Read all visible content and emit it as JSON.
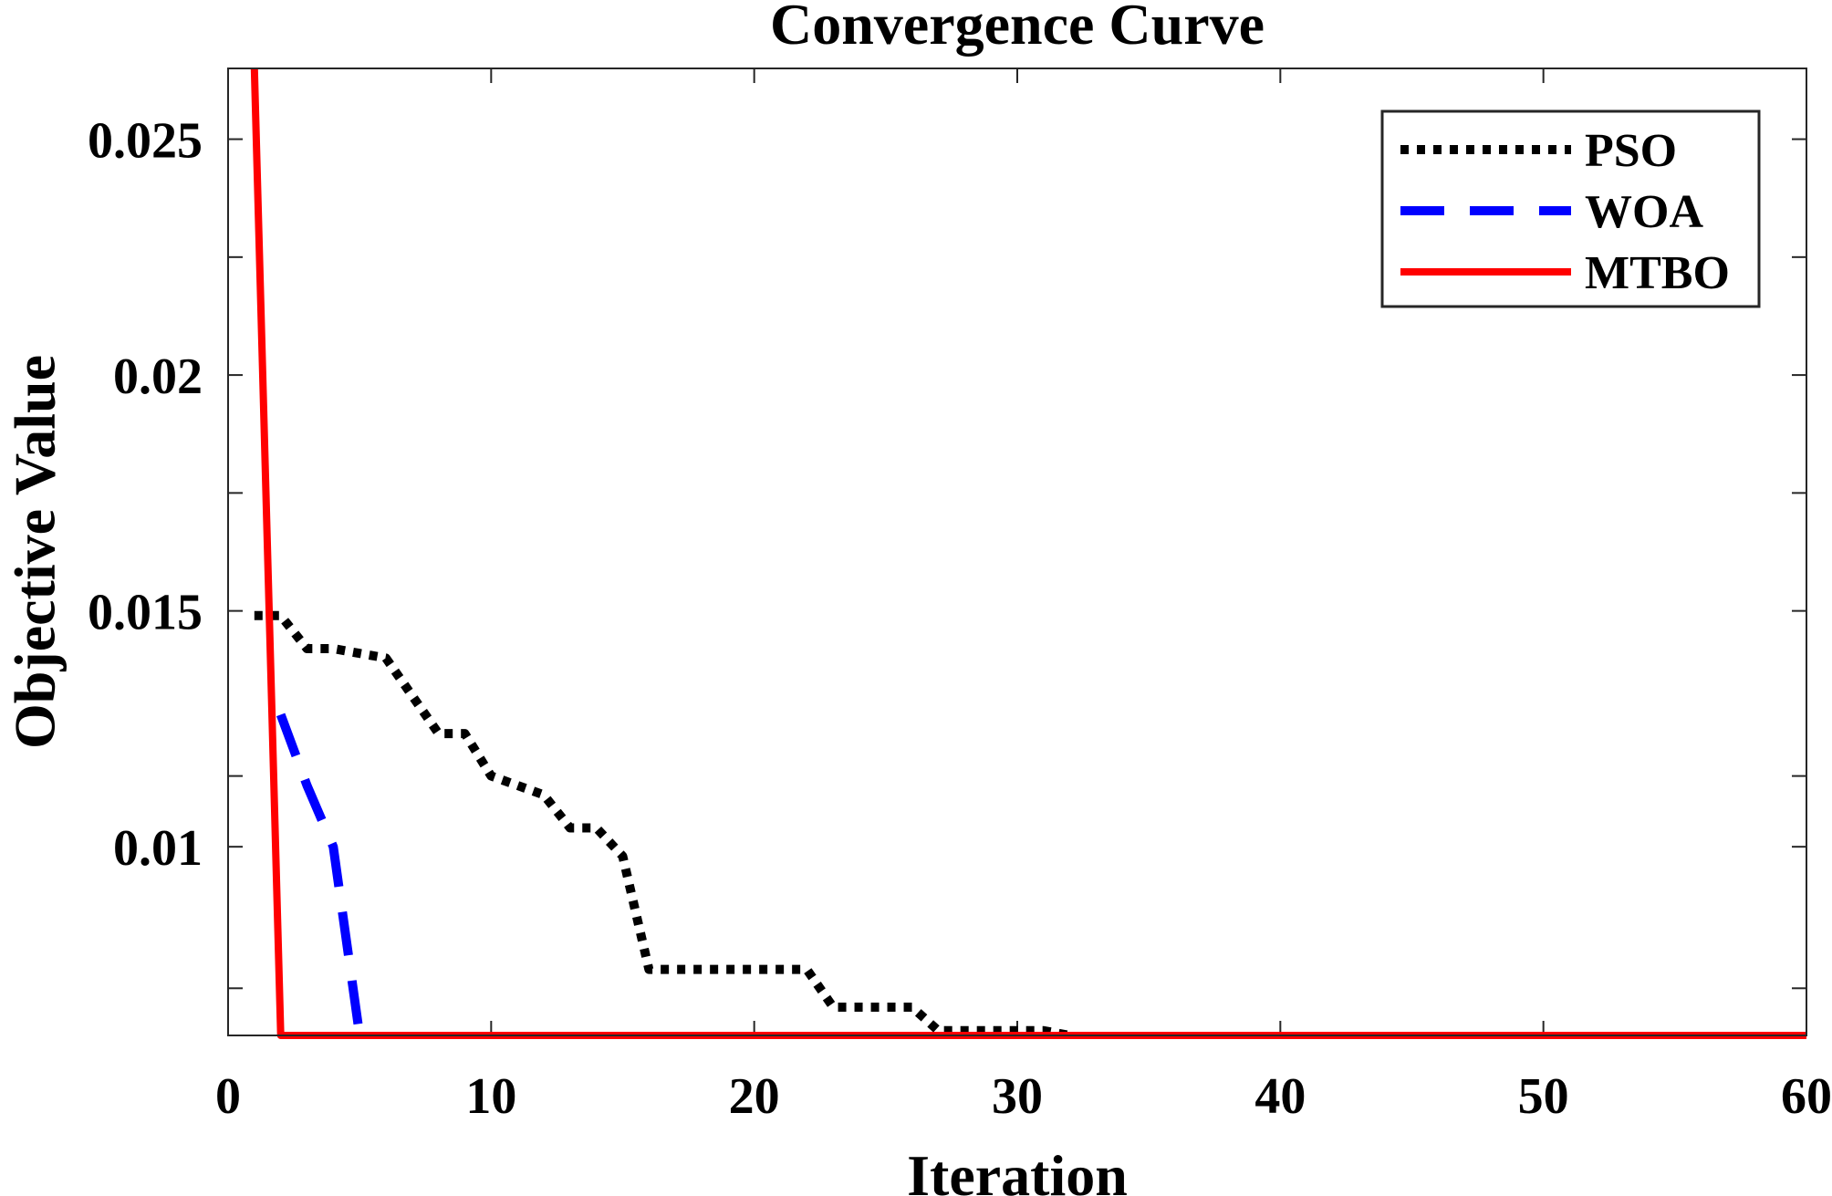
{
  "chart_data": {
    "type": "line",
    "title": "Convergence Curve",
    "xlabel": "Iteration",
    "ylabel": "Objective Value",
    "xlim": [
      0,
      60
    ],
    "ylim": [
      0.006,
      0.0265
    ],
    "x_ticks": [
      0,
      10,
      20,
      30,
      40,
      50,
      60
    ],
    "x_tick_labels": [
      "0",
      "10",
      "20",
      "30",
      "40",
      "50",
      "60"
    ],
    "y_ticks": [
      0.01,
      0.015,
      0.02,
      0.025
    ],
    "y_tick_labels": [
      "0.01",
      "0.015",
      "0.02",
      "0.025"
    ],
    "y_minor_ticks": [
      0.007,
      0.0115,
      0.0175,
      0.0225
    ],
    "grid": false,
    "legend_position": "top-right",
    "series": [
      {
        "name": "PSO",
        "color": "#000000",
        "style": "dotted",
        "x": [
          1,
          2,
          3,
          4,
          5,
          6,
          7,
          8,
          9,
          10,
          11,
          12,
          13,
          14,
          15,
          16,
          17,
          18,
          19,
          20,
          21,
          22,
          23,
          24,
          25,
          26,
          27,
          28,
          29,
          30,
          31,
          32,
          33,
          34,
          35,
          40,
          45,
          50,
          55,
          60
        ],
        "y": [
          0.0149,
          0.0149,
          0.0142,
          0.0142,
          0.0141,
          0.014,
          0.0132,
          0.0124,
          0.0124,
          0.0115,
          0.0113,
          0.0111,
          0.0104,
          0.0104,
          0.0098,
          0.0074,
          0.0074,
          0.0074,
          0.0074,
          0.0074,
          0.0074,
          0.0074,
          0.0066,
          0.0066,
          0.0066,
          0.0066,
          0.0061,
          0.0061,
          0.0061,
          0.0061,
          0.0061,
          0.006,
          0.0058,
          0.0058,
          0.0058,
          0.0058,
          0.0058,
          0.0058,
          0.0058,
          0.0058
        ]
      },
      {
        "name": "WOA",
        "color": "#0000ff",
        "style": "dashed",
        "x": [
          2,
          3,
          4,
          5
        ],
        "y": [
          0.0128,
          0.0113,
          0.01,
          0.006
        ]
      },
      {
        "name": "MTBO",
        "color": "#ff0000",
        "style": "solid",
        "x": [
          1,
          2,
          3,
          10,
          20,
          30,
          40,
          50,
          60
        ],
        "y": [
          0.0265,
          0.006,
          0.006,
          0.006,
          0.006,
          0.006,
          0.006,
          0.006,
          0.006
        ]
      }
    ]
  }
}
